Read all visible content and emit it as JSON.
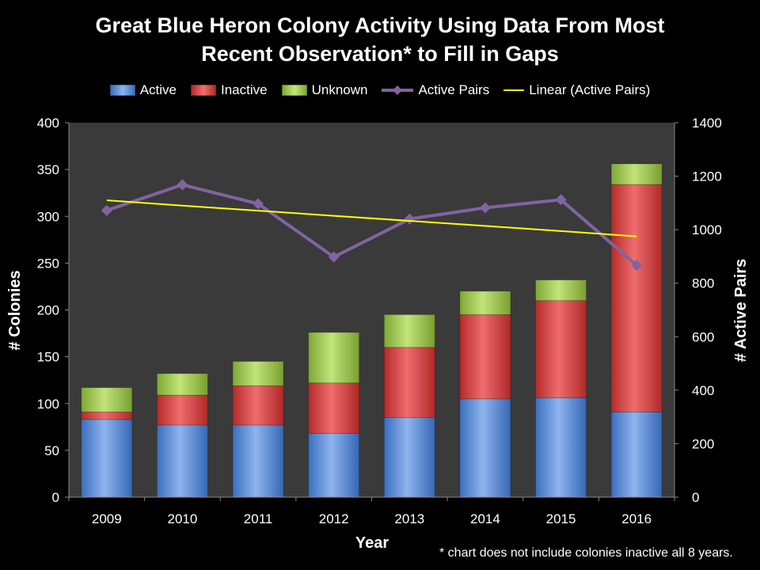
{
  "chart_data": {
    "type": "bar",
    "stacked": true,
    "title_lines": [
      "Great Blue Heron Colony Activity Using Data From Most",
      "Recent Observation* to Fill in Gaps"
    ],
    "xlabel": "Year",
    "ylabel": "# Colonies",
    "y2label": "# Active Pairs",
    "categories": [
      "2009",
      "2010",
      "2011",
      "2012",
      "2013",
      "2014",
      "2015",
      "2016"
    ],
    "ylim": [
      0,
      400
    ],
    "yticks": [
      0,
      50,
      100,
      150,
      200,
      250,
      300,
      350,
      400
    ],
    "y2lim": [
      0,
      1400
    ],
    "y2ticks": [
      0,
      200,
      400,
      600,
      800,
      1000,
      1200,
      1400
    ],
    "series": [
      {
        "name": "Active",
        "type": "bar",
        "axis": "left",
        "color": "#4f86d6",
        "values": [
          83,
          77,
          77,
          68,
          85,
          105,
          106,
          91
        ]
      },
      {
        "name": "Inactive",
        "type": "bar",
        "axis": "left",
        "color": "#d93a3a",
        "values": [
          8,
          32,
          42,
          54,
          75,
          90,
          104,
          243
        ]
      },
      {
        "name": "Unknown",
        "type": "bar",
        "axis": "left",
        "color": "#98c444",
        "values": [
          26,
          23,
          26,
          54,
          35,
          25,
          22,
          22
        ]
      },
      {
        "name": "Active Pairs",
        "type": "line",
        "axis": "right",
        "color": "#8064a2",
        "marker": "diamond",
        "values": [
          1072,
          1168,
          1097,
          898,
          1040,
          1082,
          1112,
          867
        ]
      },
      {
        "name": "Linear (Active Pairs)",
        "type": "line",
        "axis": "right",
        "color": "#ffff00",
        "values": [
          1110,
          1090,
          1071,
          1052,
          1033,
          1014,
          995,
          975
        ]
      }
    ],
    "grid": false,
    "legend_position": "top",
    "plot_background": "#3a3a3a",
    "footnote": "* chart does not include colonies inactive all 8 years."
  }
}
